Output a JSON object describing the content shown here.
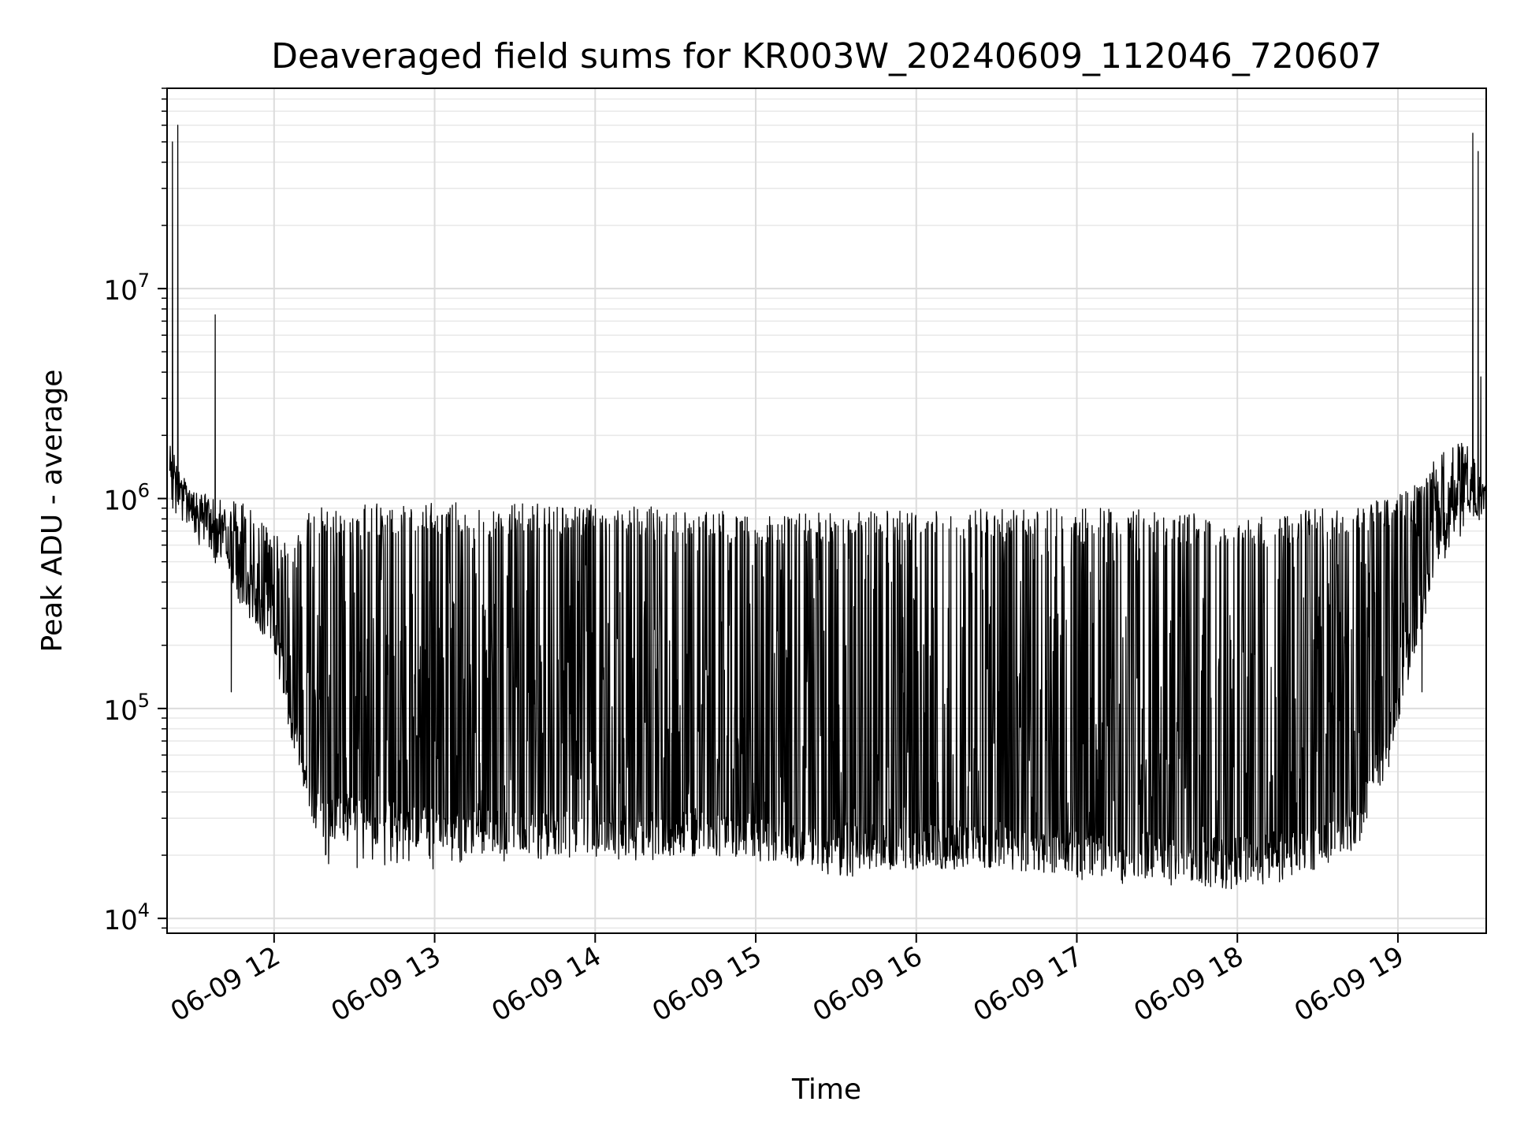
{
  "chart_data": {
    "type": "line",
    "title": "Deaveraged field sums for KR003W_20240609_112046_720607",
    "xlabel": "Time",
    "ylabel": "Peak ADU - average",
    "yscale": "log",
    "ylim": [
      8500,
      90000000
    ],
    "xlim": [
      "2024-06-09 11:20",
      "2024-06-09 19:33"
    ],
    "grid": true,
    "line_color": "#000000",
    "x_ticks": [
      {
        "t": "2024-06-09 12:00",
        "label": "06-09 12"
      },
      {
        "t": "2024-06-09 13:00",
        "label": "06-09 13"
      },
      {
        "t": "2024-06-09 14:00",
        "label": "06-09 14"
      },
      {
        "t": "2024-06-09 15:00",
        "label": "06-09 15"
      },
      {
        "t": "2024-06-09 16:00",
        "label": "06-09 16"
      },
      {
        "t": "2024-06-09 17:00",
        "label": "06-09 17"
      },
      {
        "t": "2024-06-09 18:00",
        "label": "06-09 18"
      },
      {
        "t": "2024-06-09 19:00",
        "label": "06-09 19"
      }
    ],
    "y_ticks": [
      {
        "value": 10000,
        "base": "10",
        "exp": "4"
      },
      {
        "value": 100000,
        "base": "10",
        "exp": "5"
      },
      {
        "value": 1000000,
        "base": "10",
        "exp": "6"
      },
      {
        "value": 10000000,
        "base": "10",
        "exp": "7"
      }
    ],
    "series": [
      {
        "envelope": {
          "time": [
            "2024-06-09 11:21",
            "2024-06-09 11:30",
            "2024-06-09 11:40",
            "2024-06-09 11:50",
            "2024-06-09 12:00",
            "2024-06-09 12:05",
            "2024-06-09 12:10",
            "2024-06-09 12:15",
            "2024-06-09 12:20",
            "2024-06-09 12:30",
            "2024-06-09 12:45",
            "2024-06-09 13:00",
            "2024-06-09 13:30",
            "2024-06-09 14:00",
            "2024-06-09 14:30",
            "2024-06-09 15:00",
            "2024-06-09 15:30",
            "2024-06-09 16:00",
            "2024-06-09 16:30",
            "2024-06-09 17:00",
            "2024-06-09 17:30",
            "2024-06-09 17:45",
            "2024-06-09 18:00",
            "2024-06-09 18:15",
            "2024-06-09 18:30",
            "2024-06-09 18:45",
            "2024-06-09 18:55",
            "2024-06-09 19:05",
            "2024-06-09 19:15",
            "2024-06-09 19:25",
            "2024-06-09 19:33"
          ],
          "upper": [
            1800000,
            1100000,
            1000000,
            950000,
            700000,
            600000,
            800000,
            900000,
            930000,
            940000,
            950000,
            960000,
            950000,
            940000,
            900000,
            850000,
            860000,
            880000,
            900000,
            910000,
            900000,
            850000,
            800000,
            850000,
            900000,
            950000,
            1000000,
            1100000,
            1600000,
            2000000,
            1100000
          ],
          "lower": [
            1200000,
            800000,
            600000,
            350000,
            250000,
            100000,
            60000,
            35000,
            30000,
            30000,
            28000,
            26000,
            26000,
            26000,
            25000,
            25000,
            22000,
            22000,
            22000,
            20000,
            20000,
            19000,
            19000,
            20000,
            22000,
            28000,
            60000,
            200000,
            600000,
            900000,
            1000000
          ],
          "floor": [
            1200000,
            800000,
            600000,
            350000,
            200000,
            80000,
            40000,
            25000,
            20000,
            20000,
            20000,
            20000,
            22000,
            22000,
            22000,
            22000,
            18000,
            20000,
            20000,
            17000,
            17000,
            16000,
            16000,
            17000,
            20000,
            25000,
            50000,
            180000,
            550000,
            900000,
            1000000
          ]
        },
        "spikes": [
          {
            "t": "2024-06-09 11:22",
            "value": 50000000
          },
          {
            "t": "2024-06-09 11:24",
            "value": 60000000
          },
          {
            "t": "2024-06-09 11:38",
            "value": 7500000
          },
          {
            "t": "2024-06-09 11:44",
            "value": 120000
          },
          {
            "t": "2024-06-09 19:09",
            "value": 120000
          },
          {
            "t": "2024-06-09 19:28",
            "value": 55000000
          },
          {
            "t": "2024-06-09 19:30",
            "value": 45000000
          },
          {
            "t": "2024-06-09 19:31",
            "value": 3800000
          }
        ]
      }
    ]
  }
}
